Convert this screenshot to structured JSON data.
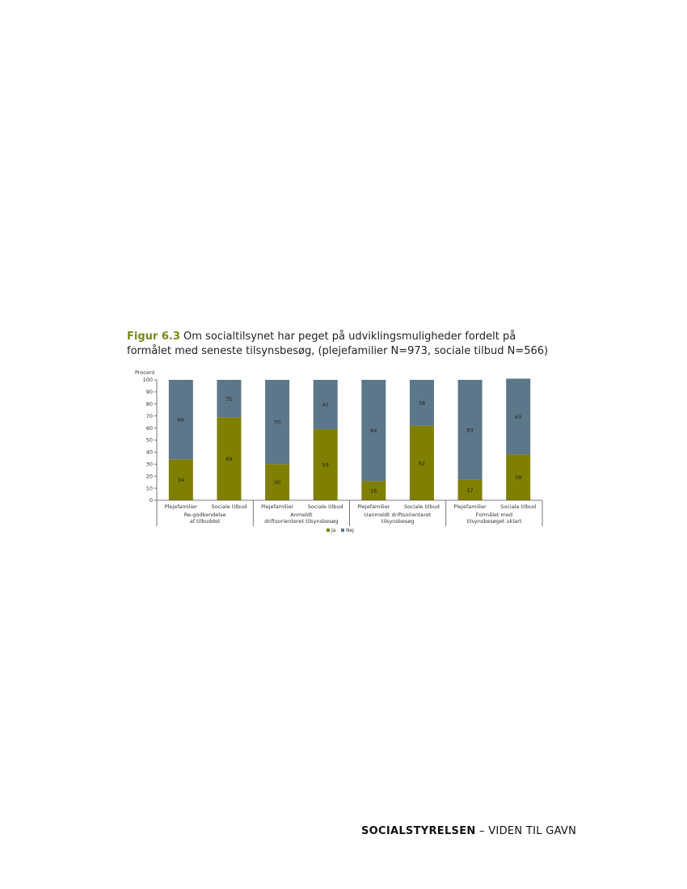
{
  "figure": {
    "label": "Figur 6.3",
    "caption": "Om socialtilsynet har peget på udviklingsmuligheder fordelt på formålet med seneste tilsynsbesøg, (plejefamilier N=973, sociale tilbud N=566)"
  },
  "chart_data": {
    "type": "bar",
    "stacked": true,
    "ylabel": "Procent",
    "ylim": [
      0,
      100
    ],
    "yticks": [
      0,
      10,
      20,
      30,
      40,
      50,
      60,
      70,
      80,
      90,
      100
    ],
    "grid": false,
    "legend_position": "bottom",
    "groups": [
      "Re-godkendelse af tilbuddet",
      "Anmeldt driftsorienteret tilsynsbesøg",
      "Uanmeldt driftsorienteret tilsynsbesøg",
      "Formålet med tilsynsbesøget uklart"
    ],
    "group_lines": [
      [
        "Re-godkendelse",
        "af tilbuddet"
      ],
      [
        "Anmeldt",
        "driftsorienteret tilsynsbesøg"
      ],
      [
        "Uanmeldt driftsorienteret",
        "tilsynsbesøg"
      ],
      [
        "Formålet med",
        "tilsynsbesøget uklart"
      ]
    ],
    "categories": [
      "Plejefamilier",
      "Sociale tilbud",
      "Plejefamilier",
      "Sociale tilbud",
      "Plejefamilier",
      "Sociale tilbud",
      "Plejefamilier",
      "Sociale tilbud"
    ],
    "series": [
      {
        "name": "Ja",
        "color": "#7f7f00",
        "values": [
          34,
          69,
          30,
          59,
          16,
          62,
          17,
          38
        ]
      },
      {
        "name": "Nej",
        "color": "#5c7789",
        "values": [
          66,
          31,
          70,
          41,
          84,
          38,
          83,
          63
        ]
      }
    ]
  },
  "footer": {
    "brand": "SOCIALSTYRELSEN",
    "tagline": " – VIDEN TIL GAVN"
  }
}
